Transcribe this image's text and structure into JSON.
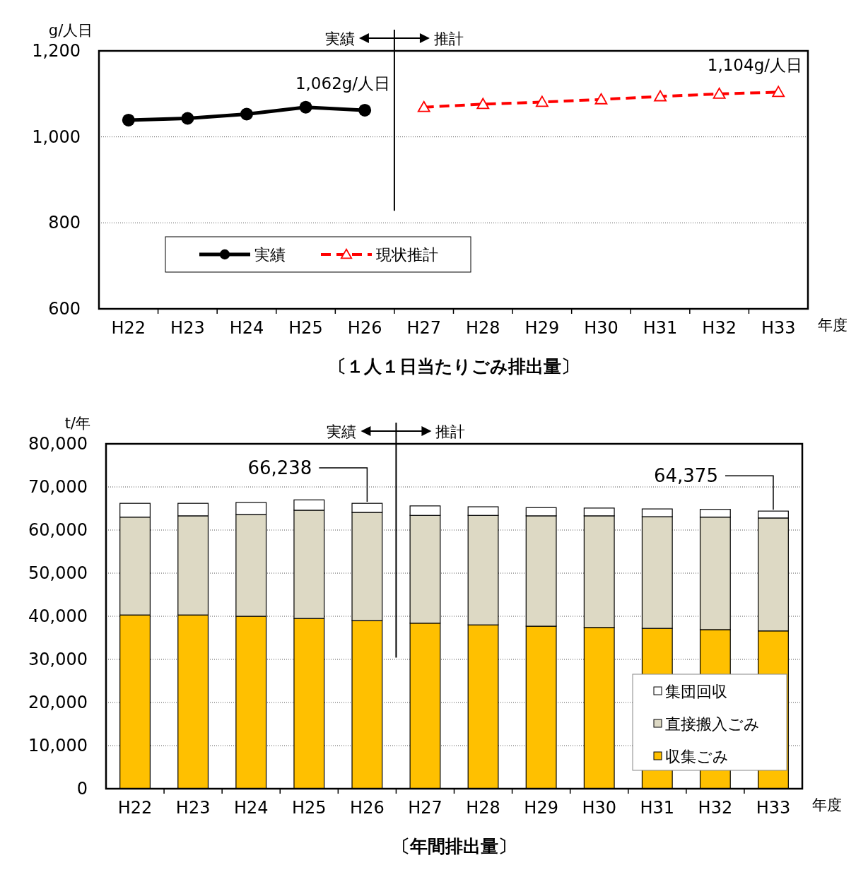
{
  "chart_data": [
    {
      "type": "line",
      "title": "〔１人１日当たりごみ排出量〕",
      "ylabel": "g/人日",
      "xlabel": "年度",
      "categories": [
        "H22",
        "H23",
        "H24",
        "H25",
        "H26",
        "H27",
        "H28",
        "H29",
        "H30",
        "H31",
        "H32",
        "H33"
      ],
      "series": [
        {
          "name": "実績",
          "color": "#000000",
          "marker": "circle",
          "line_style": "solid",
          "values": [
            1039,
            1043,
            1053,
            1069,
            1062,
            null,
            null,
            null,
            null,
            null,
            null,
            null
          ]
        },
        {
          "name": "現状推計",
          "color": "#ff0000",
          "marker": "triangle",
          "line_style": "dashed",
          "values": [
            null,
            null,
            null,
            null,
            null,
            1069,
            1076,
            1081,
            1087,
            1094,
            1100,
            1104
          ]
        }
      ],
      "ylim": [
        600,
        1200
      ],
      "yticks": [
        600,
        800,
        {
          "value": 1000,
          "label": "1,000"
        },
        {
          "value": 1200,
          "label": "1,200"
        }
      ],
      "grid": "y",
      "legend": "bottom left",
      "annotations": [
        "実績",
        "推計",
        {
          "text": "1,062g/人日",
          "x": "H26",
          "y": 1062
        },
        {
          "text": "1,104g/人日",
          "x": "H33",
          "y": 1104
        }
      ]
    },
    {
      "type": "bar",
      "stacked": true,
      "title": "〔年間排出量〕",
      "ylabel": "t/年",
      "xlabel": "年度",
      "categories": [
        "H22",
        "H23",
        "H24",
        "H25",
        "H26",
        "H27",
        "H28",
        "H29",
        "H30",
        "H31",
        "H32",
        "H33"
      ],
      "series": [
        {
          "name": "収集ごみ",
          "color": "#ffc000",
          "values": [
            40300,
            40300,
            40000,
            39500,
            39000,
            38400,
            38000,
            37700,
            37400,
            37200,
            36900,
            36600
          ]
        },
        {
          "name": "直接搬入ごみ",
          "color": "#ddd9c4",
          "values": [
            22700,
            23000,
            23600,
            25100,
            25100,
            25000,
            25400,
            25600,
            25900,
            25900,
            26100,
            26200
          ]
        },
        {
          "name": "集団回収",
          "color": "#ffffff",
          "values": [
            3200,
            2900,
            2800,
            2400,
            2100,
            2200,
            2000,
            1900,
            1800,
            1800,
            1800,
            1600
          ]
        }
      ],
      "ylim": [
        0,
        80000
      ],
      "yticks": [
        0,
        {
          "value": 10000,
          "label": "10,000"
        },
        {
          "value": 20000,
          "label": "20,000"
        },
        {
          "value": 30000,
          "label": "30,000"
        },
        {
          "value": 40000,
          "label": "40,000"
        },
        {
          "value": 50000,
          "label": "50,000"
        },
        {
          "value": 60000,
          "label": "60,000"
        },
        {
          "value": 70000,
          "label": "70,000"
        },
        {
          "value": 80000,
          "label": "80,000"
        }
      ],
      "grid": "y",
      "legend": "bottom right",
      "annotations": [
        "実績",
        "推計",
        {
          "text": "66,238",
          "x": "H26",
          "y": 66238
        },
        {
          "text": "64,375",
          "x": "H33",
          "y": 64375
        }
      ]
    }
  ]
}
